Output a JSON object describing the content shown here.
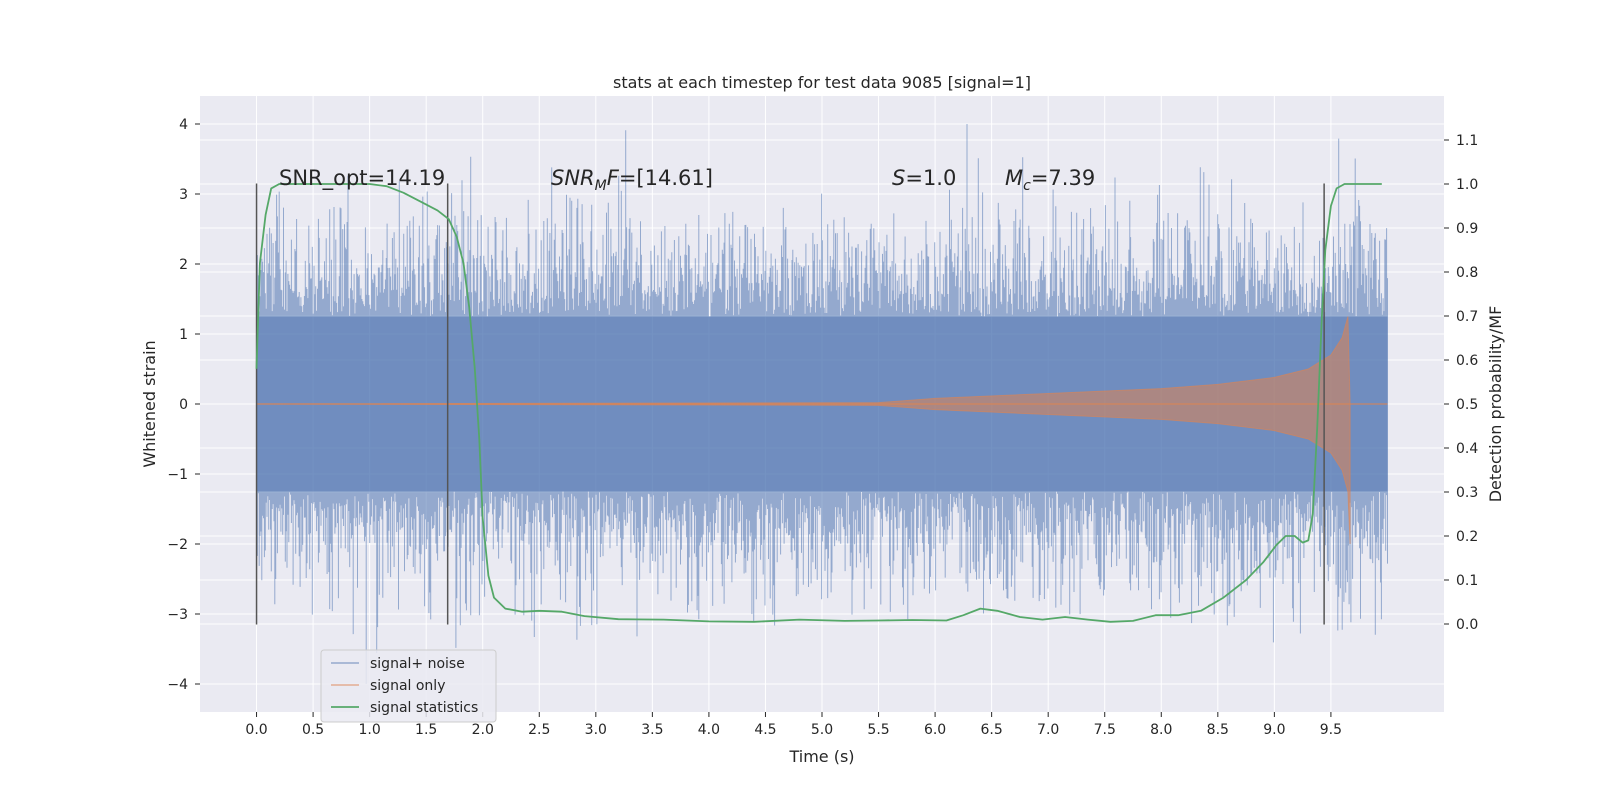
{
  "chart_data": {
    "type": "line",
    "title": "stats at each timestep for test data 9085 [signal=1]",
    "xlabel": "Time (s)",
    "ylabel": "Whitened strain",
    "ylabel_right": "Detection probability/MF",
    "xlim": [
      -0.5,
      10.5
    ],
    "ylim": [
      -4.4,
      4.4
    ],
    "ylim_right": [
      -0.2,
      1.2
    ],
    "x_ticks": [
      "0.0",
      "0.5",
      "1.0",
      "1.5",
      "2.0",
      "2.5",
      "3.0",
      "3.5",
      "4.0",
      "4.5",
      "5.0",
      "5.5",
      "6.0",
      "6.5",
      "7.0",
      "7.5",
      "8.0",
      "8.5",
      "9.0",
      "9.5"
    ],
    "y_ticks": [
      "4",
      "3",
      "2",
      "1",
      "0",
      "−1",
      "−2",
      "−3",
      "−4"
    ],
    "y_ticks_right": [
      "1.1",
      "1.0",
      "0.9",
      "0.8",
      "0.7",
      "0.6",
      "0.5",
      "0.4",
      "0.3",
      "0.2",
      "0.1",
      "0.0"
    ],
    "grid": true,
    "legend_position": "lower-left",
    "annotations": {
      "snr_opt": "SNR_opt=14.19",
      "snr_mf_main": "SNR",
      "snr_mf_sub": "M",
      "snr_mf_rest": "F=[14.61]",
      "s_label": "S",
      "s_value": "=1.0",
      "mc_label": "M",
      "mc_sub": "c",
      "mc_value": "=7.39"
    },
    "vertical_markers": [
      0.0,
      1.69,
      9.44
    ],
    "colors": {
      "noise": "#4c72b0",
      "signal": "#dd8452",
      "stats": "#55a868",
      "marker": "#555555",
      "plot_bg": "#eaeaf2",
      "grid": "#ffffff"
    },
    "series": [
      {
        "name": "signal+ noise",
        "description_range": "noise between about -3.2 and 4.0",
        "x_range": [
          0.0,
          10.0
        ]
      },
      {
        "name": "signal only",
        "envelope_x": [
          0.0,
          5.5,
          6.0,
          7.0,
          8.0,
          8.5,
          9.0,
          9.3,
          9.5,
          9.6,
          9.65,
          9.67
        ],
        "envelope_y": [
          0.0,
          0.02,
          0.08,
          0.15,
          0.22,
          0.28,
          0.38,
          0.5,
          0.7,
          0.95,
          1.25,
          0.0
        ]
      },
      {
        "name": "signal statistics",
        "x": [
          0.0,
          0.03,
          0.08,
          0.13,
          0.2,
          0.35,
          0.6,
          0.8,
          1.0,
          1.15,
          1.3,
          1.45,
          1.6,
          1.7,
          1.77,
          1.83,
          1.88,
          1.93,
          1.97,
          2.0,
          2.05,
          2.1,
          2.2,
          2.35,
          2.5,
          2.7,
          2.9,
          3.2,
          3.6,
          4.0,
          4.4,
          4.8,
          5.2,
          5.5,
          5.8,
          6.1,
          6.25,
          6.4,
          6.55,
          6.75,
          6.95,
          7.15,
          7.35,
          7.55,
          7.75,
          7.95,
          8.15,
          8.35,
          8.55,
          8.75,
          8.9,
          9.02,
          9.1,
          9.18,
          9.25,
          9.3,
          9.34,
          9.38,
          9.42,
          9.45,
          9.5,
          9.55,
          9.62,
          9.7,
          9.8,
          9.9,
          9.95
        ],
        "y": [
          0.58,
          0.82,
          0.93,
          0.99,
          1.0,
          1.0,
          1.0,
          1.0,
          1.0,
          0.995,
          0.98,
          0.96,
          0.94,
          0.92,
          0.88,
          0.82,
          0.72,
          0.58,
          0.42,
          0.24,
          0.11,
          0.06,
          0.035,
          0.028,
          0.03,
          0.028,
          0.018,
          0.011,
          0.01,
          0.006,
          0.005,
          0.01,
          0.007,
          0.008,
          0.009,
          0.008,
          0.02,
          0.035,
          0.03,
          0.016,
          0.01,
          0.016,
          0.01,
          0.005,
          0.007,
          0.02,
          0.02,
          0.03,
          0.06,
          0.1,
          0.14,
          0.18,
          0.2,
          0.2,
          0.185,
          0.19,
          0.25,
          0.45,
          0.7,
          0.85,
          0.95,
          0.99,
          1.0,
          1.0,
          1.0,
          1.0,
          1.0
        ]
      }
    ]
  }
}
